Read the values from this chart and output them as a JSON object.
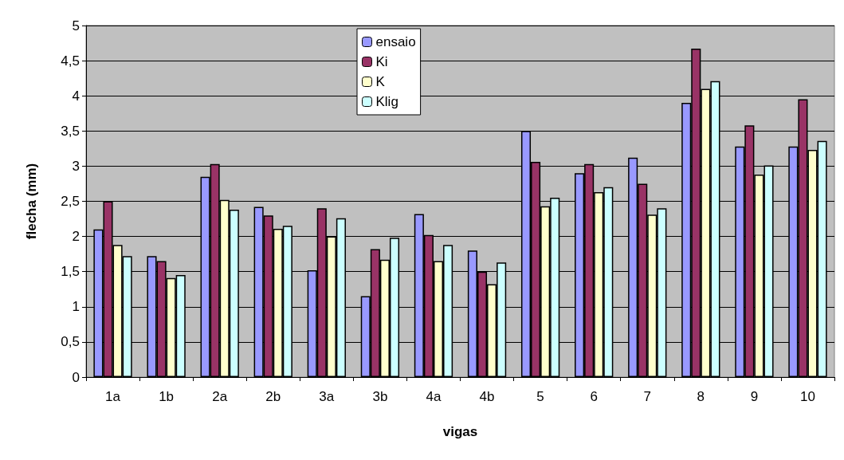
{
  "chart_data": {
    "type": "bar",
    "xlabel": "vigas",
    "ylabel": "flecha (mm)",
    "categories": [
      "1a",
      "1b",
      "2a",
      "2b",
      "3a",
      "3b",
      "4a",
      "4b",
      "5",
      "6",
      "7",
      "8",
      "9",
      "10"
    ],
    "series": [
      {
        "name": "ensaio",
        "color": "#9999ff",
        "values": [
          2.1,
          1.72,
          2.85,
          2.42,
          1.52,
          1.15,
          2.32,
          1.8,
          3.5,
          2.9,
          3.12,
          3.9,
          3.28,
          3.28
        ]
      },
      {
        "name": "Ki",
        "color": "#993366",
        "values": [
          2.5,
          1.65,
          3.03,
          2.3,
          2.4,
          1.82,
          2.02,
          1.5,
          3.06,
          3.03,
          2.75,
          4.67,
          3.58,
          3.95
        ]
      },
      {
        "name": "K",
        "color": "#ffffcc",
        "values": [
          1.88,
          1.41,
          2.52,
          2.11,
          2.0,
          1.67,
          1.65,
          1.32,
          2.43,
          2.63,
          2.31,
          4.1,
          2.88,
          3.23
        ]
      },
      {
        "name": "Klig",
        "color": "#ccffff",
        "values": [
          1.72,
          1.45,
          2.38,
          2.15,
          2.26,
          1.98,
          1.88,
          1.63,
          2.55,
          2.7,
          2.4,
          4.21,
          3.01,
          3.36
        ]
      }
    ],
    "ylim": [
      0,
      5
    ],
    "yticks": [
      0,
      {
        "value": 0.5,
        "label": "0,5"
      },
      1,
      {
        "value": 1.5,
        "label": "1,5"
      },
      2,
      {
        "value": 2.5,
        "label": "2,5"
      },
      3,
      {
        "value": 3.5,
        "label": "3,5"
      },
      4,
      {
        "value": 4.5,
        "label": "4,5"
      },
      5
    ],
    "grid": "y",
    "legend": "top"
  }
}
